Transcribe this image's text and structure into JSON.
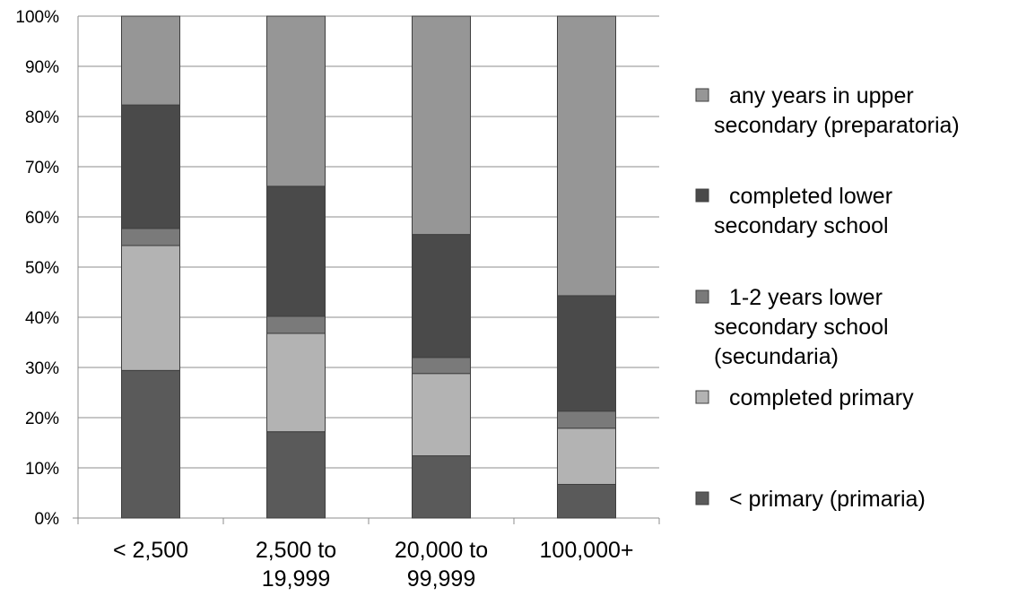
{
  "chart_data": {
    "type": "bar",
    "stacked": true,
    "percent": true,
    "title": "",
    "xlabel": "",
    "ylabel": "",
    "ylim": [
      0,
      100
    ],
    "yticks": [
      "0%",
      "10%",
      "20%",
      "30%",
      "40%",
      "50%",
      "60%",
      "70%",
      "80%",
      "90%",
      "100%"
    ],
    "grid": true,
    "legend_position": "right",
    "categories": [
      [
        "< 2,500"
      ],
      [
        "2,500 to",
        "19,999"
      ],
      [
        "20,000 to",
        "99,999"
      ],
      [
        "100,000+"
      ]
    ],
    "series": [
      {
        "name": [
          "< primary (primaria)"
        ],
        "color": "#5a5a5a",
        "values": [
          29.4,
          17.2,
          12.4,
          6.7
        ]
      },
      {
        "name": [
          "completed primary"
        ],
        "color": "#b3b3b3",
        "values": [
          24.9,
          19.6,
          16.4,
          11.2
        ]
      },
      {
        "name": [
          "1-2 years lower",
          "secondary school",
          "(secundaria)"
        ],
        "color": "#7a7a7a",
        "values": [
          3.4,
          3.4,
          3.2,
          3.4
        ]
      },
      {
        "name": [
          "completed lower",
          "secondary school"
        ],
        "color": "#4a4a4a",
        "values": [
          24.6,
          25.9,
          24.5,
          23.0
        ]
      },
      {
        "name": [
          "any years in upper",
          "secondary (preparatoria)"
        ],
        "color": "#969696",
        "values": [
          17.7,
          33.9,
          43.5,
          55.7
        ]
      }
    ]
  }
}
